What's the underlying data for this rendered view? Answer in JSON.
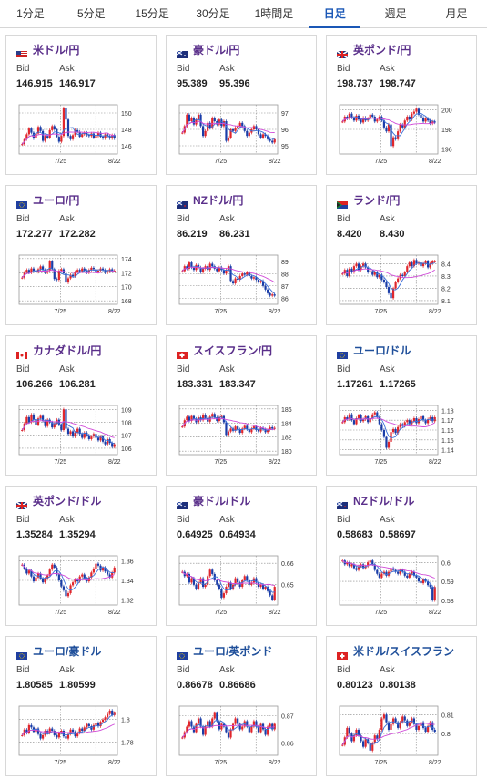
{
  "tabs": [
    {
      "label": "1分足",
      "active": false
    },
    {
      "label": "5分足",
      "active": false
    },
    {
      "label": "15分足",
      "active": false
    },
    {
      "label": "30分足",
      "active": false
    },
    {
      "label": "1時間足",
      "active": false
    },
    {
      "label": "日足",
      "active": true
    },
    {
      "label": "週足",
      "active": false
    },
    {
      "label": "月足",
      "active": false
    }
  ],
  "labels": {
    "bid": "Bid",
    "ask": "Ask"
  },
  "colors": {
    "up": "#e0262c",
    "down": "#1a3da8",
    "ma_short": "#3a6fd8",
    "ma_long": "#d04ad8",
    "accent": "#1a57b6"
  },
  "pairs": [
    {
      "name": "米ドル/円",
      "flag": "us",
      "bid": "146.915",
      "ask": "146.917",
      "name_color": "purple",
      "ticks": [
        "150",
        "148",
        "146"
      ],
      "ylim": [
        145,
        151
      ],
      "dates": [
        "7/25",
        "8/22"
      ],
      "close": [
        146.2,
        146.8,
        147.4,
        148.1,
        147.6,
        146.9,
        147.5,
        148.3,
        147.8,
        146.6,
        147.2,
        147.0,
        147.9,
        148.4,
        148.0,
        147.1,
        146.5,
        147.2,
        150.6,
        149.2,
        147.2,
        146.8,
        147.3,
        147.9,
        147.7,
        147.1,
        147.4,
        147.6,
        147.3,
        147.2,
        147.5,
        147.0,
        147.2,
        147.6,
        147.1,
        146.9,
        147.4,
        147.2,
        146.9,
        147.3,
        146.9
      ]
    },
    {
      "name": "豪ドル/円",
      "flag": "au",
      "bid": "95.389",
      "ask": "95.396",
      "name_color": "purple",
      "ticks": [
        "97",
        "96",
        "95"
      ],
      "ylim": [
        94.5,
        97.5
      ],
      "dates": [
        "7/25",
        "8/22"
      ],
      "close": [
        95.8,
        96.2,
        96.9,
        96.5,
        96.7,
        96.3,
        96.6,
        96.9,
        96.2,
        95.6,
        95.9,
        96.4,
        96.1,
        96.7,
        96.5,
        96.3,
        96.6,
        96.2,
        96.5,
        95.3,
        95.5,
        96.0,
        95.9,
        96.1,
        96.2,
        96.4,
        96.2,
        95.9,
        95.6,
        95.8,
        96.0,
        96.2,
        96.0,
        95.7,
        95.5,
        95.7,
        95.6,
        95.4,
        95.3,
        95.2,
        95.4
      ]
    },
    {
      "name": "英ポンド/円",
      "flag": "uk",
      "bid": "198.737",
      "ask": "198.747",
      "name_color": "purple",
      "ticks": [
        "200",
        "198",
        "196"
      ],
      "ylim": [
        195.5,
        200.5
      ],
      "dates": [
        "7/25",
        "8/22"
      ],
      "close": [
        198.8,
        199.3,
        199.1,
        199.6,
        199.2,
        198.9,
        199.4,
        199.0,
        198.7,
        199.2,
        198.9,
        199.1,
        199.5,
        199.3,
        198.8,
        199.0,
        199.3,
        198.9,
        198.2,
        197.8,
        198.5,
        196.3,
        197.2,
        197.0,
        197.8,
        198.5,
        198.2,
        198.9,
        199.3,
        199.0,
        199.6,
        199.8,
        200.1,
        199.5,
        199.2,
        198.8,
        199.1,
        198.9,
        198.6,
        198.8,
        198.7
      ]
    },
    {
      "name": "ユーロ/円",
      "flag": "eu",
      "bid": "172.277",
      "ask": "172.282",
      "name_color": "purple",
      "ticks": [
        "174",
        "172",
        "170",
        "168"
      ],
      "ylim": [
        167.5,
        174.5
      ],
      "dates": [
        "7/25",
        "8/22"
      ],
      "close": [
        171.3,
        172.0,
        172.4,
        172.0,
        172.6,
        172.3,
        172.1,
        172.5,
        172.9,
        172.4,
        172.0,
        172.3,
        173.6,
        172.5,
        171.1,
        171.0,
        172.3,
        172.5,
        171.9,
        170.6,
        171.2,
        171.7,
        171.5,
        172.1,
        172.4,
        172.2,
        172.6,
        172.3,
        172.0,
        172.4,
        172.7,
        172.5,
        172.1,
        172.3,
        172.6,
        172.4,
        172.0,
        172.2,
        172.5,
        172.3,
        172.3
      ]
    },
    {
      "name": "NZドル/円",
      "flag": "nz",
      "bid": "86.219",
      "ask": "86.231",
      "name_color": "purple",
      "ticks": [
        "89",
        "88",
        "87",
        "86"
      ],
      "ylim": [
        85.5,
        89.5
      ],
      "dates": [
        "7/25",
        "8/22"
      ],
      "close": [
        88.2,
        88.6,
        88.4,
        88.9,
        88.5,
        88.3,
        88.7,
        88.5,
        88.1,
        88.4,
        88.6,
        88.3,
        88.8,
        88.6,
        88.4,
        88.2,
        88.5,
        88.3,
        88.0,
        88.3,
        88.6,
        87.4,
        87.2,
        87.6,
        87.5,
        87.8,
        88.0,
        87.9,
        88.1,
        87.8,
        87.6,
        87.7,
        87.5,
        87.3,
        87.4,
        87.0,
        86.7,
        86.4,
        86.2,
        86.3,
        86.2
      ]
    },
    {
      "name": "ランド/円",
      "flag": "za",
      "bid": "8.420",
      "ask": "8.430",
      "name_color": "purple",
      "ticks": [
        "8.4",
        "8.3",
        "8.2",
        "8.1"
      ],
      "ylim": [
        8.07,
        8.47
      ],
      "dates": [
        "7/25",
        "8/22"
      ],
      "close": [
        8.32,
        8.35,
        8.3,
        8.36,
        8.33,
        8.38,
        8.4,
        8.35,
        8.38,
        8.4,
        8.37,
        8.33,
        8.34,
        8.31,
        8.33,
        8.29,
        8.31,
        8.27,
        8.25,
        8.21,
        8.16,
        8.12,
        8.2,
        8.25,
        8.28,
        8.31,
        8.3,
        8.33,
        8.38,
        8.41,
        8.38,
        8.43,
        8.4,
        8.41,
        8.38,
        8.4,
        8.42,
        8.37,
        8.4,
        8.42,
        8.42
      ]
    },
    {
      "name": "カナダドル/円",
      "flag": "ca",
      "bid": "106.266",
      "ask": "106.281",
      "name_color": "purple",
      "ticks": [
        "109",
        "108",
        "107",
        "106"
      ],
      "ylim": [
        105.5,
        109.3
      ],
      "dates": [
        "7/25",
        "8/22"
      ],
      "close": [
        107.4,
        107.9,
        108.4,
        108.0,
        108.6,
        108.2,
        107.8,
        108.3,
        108.5,
        108.1,
        107.7,
        108.2,
        108.0,
        107.6,
        107.9,
        108.2,
        107.8,
        107.4,
        109.0,
        107.5,
        107.1,
        107.3,
        106.9,
        107.2,
        107.5,
        107.1,
        106.8,
        107.2,
        107.0,
        106.7,
        106.9,
        107.1,
        106.8,
        106.6,
        106.9,
        106.5,
        106.3,
        106.7,
        106.4,
        106.1,
        106.3
      ]
    },
    {
      "name": "スイスフラン/円",
      "flag": "ch",
      "bid": "183.331",
      "ask": "183.347",
      "name_color": "purple",
      "ticks": [
        "186",
        "184",
        "182",
        "180"
      ],
      "ylim": [
        179.5,
        186.5
      ],
      "dates": [
        "7/25",
        "8/22"
      ],
      "close": [
        183.5,
        184.4,
        184.9,
        184.3,
        185.0,
        184.6,
        184.1,
        184.8,
        184.4,
        185.2,
        184.7,
        184.2,
        184.9,
        185.3,
        184.8,
        184.3,
        184.8,
        185.0,
        184.1,
        182.3,
        182.8,
        183.2,
        182.9,
        183.5,
        183.1,
        182.6,
        183.2,
        183.6,
        183.1,
        182.7,
        183.2,
        183.5,
        183.0,
        182.8,
        183.3,
        183.1,
        182.7,
        183.0,
        183.4,
        183.2,
        183.3
      ]
    },
    {
      "name": "ユーロ/ドル",
      "flag": "eu",
      "bid": "1.17261",
      "ask": "1.17265",
      "name_color": "blue",
      "ticks": [
        "1.18",
        "1.17",
        "1.16",
        "1.15",
        "1.14"
      ],
      "ylim": [
        1.135,
        1.185
      ],
      "dates": [
        "7/25",
        "8/22"
      ],
      "close": [
        1.168,
        1.173,
        1.171,
        1.176,
        1.17,
        1.166,
        1.172,
        1.175,
        1.169,
        1.171,
        1.174,
        1.168,
        1.172,
        1.176,
        1.178,
        1.173,
        1.166,
        1.16,
        1.153,
        1.142,
        1.148,
        1.158,
        1.161,
        1.157,
        1.163,
        1.166,
        1.164,
        1.168,
        1.17,
        1.166,
        1.169,
        1.172,
        1.167,
        1.171,
        1.174,
        1.17,
        1.167,
        1.171,
        1.173,
        1.169,
        1.173
      ]
    },
    {
      "name": "英ポンド/ドル",
      "flag": "uk",
      "bid": "1.35284",
      "ask": "1.35294",
      "name_color": "purple",
      "ticks": [
        "1.36",
        "1.34",
        "1.32"
      ],
      "ylim": [
        1.315,
        1.365
      ],
      "dates": [
        "7/25",
        "8/22"
      ],
      "close": [
        1.356,
        1.352,
        1.347,
        1.35,
        1.344,
        1.339,
        1.343,
        1.347,
        1.342,
        1.338,
        1.342,
        1.345,
        1.351,
        1.356,
        1.353,
        1.346,
        1.34,
        1.334,
        1.33,
        1.324,
        1.327,
        1.335,
        1.338,
        1.341,
        1.339,
        1.344,
        1.346,
        1.342,
        1.339,
        1.343,
        1.348,
        1.352,
        1.357,
        1.355,
        1.35,
        1.353,
        1.349,
        1.346,
        1.343,
        1.348,
        1.353
      ]
    },
    {
      "name": "豪ドル/ドル",
      "flag": "au",
      "bid": "0.64925",
      "ask": "0.64934",
      "name_color": "purple",
      "ticks": [
        "0.66",
        "0.65"
      ],
      "ylim": [
        0.6405,
        0.6635
      ],
      "dates": [
        "7/25",
        "8/22"
      ],
      "close": [
        0.656,
        0.654,
        0.655,
        0.651,
        0.653,
        0.65,
        0.648,
        0.651,
        0.653,
        0.649,
        0.65,
        0.654,
        0.657,
        0.655,
        0.652,
        0.65,
        0.648,
        0.644,
        0.646,
        0.649,
        0.651,
        0.648,
        0.65,
        0.653,
        0.651,
        0.649,
        0.652,
        0.654,
        0.652,
        0.65,
        0.651,
        0.653,
        0.651,
        0.649,
        0.65,
        0.648,
        0.649,
        0.647,
        0.645,
        0.643,
        0.649
      ]
    },
    {
      "name": "NZドル/ドル",
      "flag": "nz",
      "bid": "0.58683",
      "ask": "0.58697",
      "name_color": "purple",
      "ticks": [
        "0.6",
        "0.59",
        "0.58"
      ],
      "ylim": [
        0.5775,
        0.6035
      ],
      "dates": [
        "7/25",
        "8/22"
      ],
      "close": [
        0.601,
        0.599,
        0.6,
        0.598,
        0.599,
        0.597,
        0.596,
        0.598,
        0.599,
        0.597,
        0.598,
        0.6,
        0.601,
        0.599,
        0.596,
        0.594,
        0.592,
        0.594,
        0.595,
        0.593,
        0.595,
        0.597,
        0.596,
        0.595,
        0.594,
        0.596,
        0.595,
        0.593,
        0.592,
        0.594,
        0.595,
        0.593,
        0.592,
        0.59,
        0.589,
        0.591,
        0.59,
        0.588,
        0.587,
        0.58,
        0.587
      ]
    },
    {
      "name": "ユーロ/豪ドル",
      "flag": "eu",
      "bid": "1.80585",
      "ask": "1.80599",
      "name_color": "blue",
      "ticks": [
        "1.8",
        "1.78"
      ],
      "ylim": [
        1.768,
        1.812
      ],
      "dates": [
        "7/25",
        "8/22"
      ],
      "close": [
        1.786,
        1.791,
        1.788,
        1.795,
        1.793,
        1.789,
        1.792,
        1.787,
        1.783,
        1.786,
        1.79,
        1.788,
        1.792,
        1.79,
        1.786,
        1.784,
        1.788,
        1.79,
        1.785,
        1.783,
        1.787,
        1.791,
        1.789,
        1.785,
        1.788,
        1.792,
        1.79,
        1.793,
        1.796,
        1.794,
        1.791,
        1.795,
        1.797,
        1.794,
        1.798,
        1.8,
        1.802,
        1.805,
        1.808,
        1.804,
        1.806
      ]
    },
    {
      "name": "ユーロ/英ポンド",
      "flag": "eu",
      "bid": "0.86678",
      "ask": "0.86686",
      "name_color": "blue",
      "ticks": [
        "0.87",
        "0.86"
      ],
      "ylim": [
        0.8555,
        0.8735
      ],
      "dates": [
        "7/25",
        "8/22"
      ],
      "close": [
        0.862,
        0.864,
        0.866,
        0.868,
        0.866,
        0.864,
        0.867,
        0.869,
        0.866,
        0.863,
        0.866,
        0.868,
        0.866,
        0.869,
        0.871,
        0.868,
        0.865,
        0.867,
        0.866,
        0.864,
        0.862,
        0.865,
        0.867,
        0.869,
        0.867,
        0.865,
        0.866,
        0.868,
        0.866,
        0.864,
        0.866,
        0.868,
        0.866,
        0.864,
        0.867,
        0.865,
        0.863,
        0.866,
        0.867,
        0.865,
        0.867
      ]
    },
    {
      "name": "米ドル/スイスフラン",
      "flag": "ch",
      "bid": "0.80123",
      "ask": "0.80138",
      "name_color": "blue",
      "ticks": [
        "0.81",
        "0.8"
      ],
      "ylim": [
        0.7885,
        0.8145
      ],
      "dates": [
        "7/25",
        "8/22"
      ],
      "close": [
        0.794,
        0.798,
        0.803,
        0.8,
        0.796,
        0.799,
        0.802,
        0.799,
        0.796,
        0.793,
        0.797,
        0.795,
        0.791,
        0.795,
        0.799,
        0.797,
        0.802,
        0.808,
        0.81,
        0.806,
        0.802,
        0.805,
        0.808,
        0.806,
        0.803,
        0.806,
        0.809,
        0.807,
        0.804,
        0.806,
        0.808,
        0.805,
        0.802,
        0.804,
        0.806,
        0.803,
        0.801,
        0.804,
        0.806,
        0.802,
        0.801
      ]
    }
  ]
}
